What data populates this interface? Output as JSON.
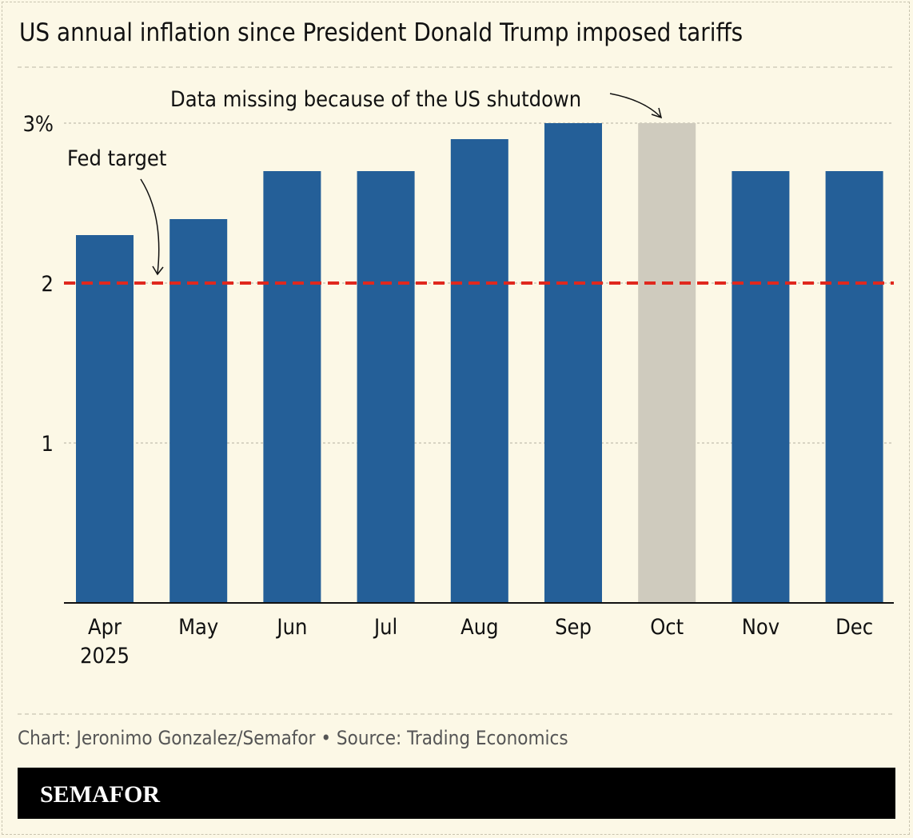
{
  "chart_data": {
    "type": "bar",
    "title": "US annual inflation since President Donald Trump imposed tariffs",
    "categories": [
      "Apr",
      "May",
      "Jun",
      "Jul",
      "Aug",
      "Sep",
      "Oct",
      "Nov",
      "Dec"
    ],
    "category_sublabels": [
      "2025",
      "",
      "",
      "",
      "",
      "",
      "",
      "",
      ""
    ],
    "values": [
      2.3,
      2.4,
      2.7,
      2.7,
      2.9,
      3.0,
      null,
      2.7,
      2.7
    ],
    "missing_placeholder": {
      "category": "Oct",
      "value": 3.0,
      "color": "#cfcbbe"
    },
    "ylim": [
      0,
      3
    ],
    "yticks": [
      1,
      2,
      3
    ],
    "ytick_labels": [
      "1",
      "2",
      "3%"
    ],
    "grid": true,
    "reference_line": {
      "value": 2,
      "label": "Fed target",
      "color": "#e0281e",
      "style": "dashed"
    },
    "annotations": [
      {
        "text": "Data missing because of the US shutdown",
        "target": "Oct"
      },
      {
        "text": "Fed target",
        "target": "2"
      }
    ],
    "colors": {
      "bar": "#245f98",
      "background": "#fcf8e6"
    },
    "xlabel": "",
    "ylabel": ""
  },
  "footer": {
    "credit": "Chart: Jeronimo Gonzalez/Semafor • Source: Trading Economics",
    "brand": "SEMAFOR"
  }
}
